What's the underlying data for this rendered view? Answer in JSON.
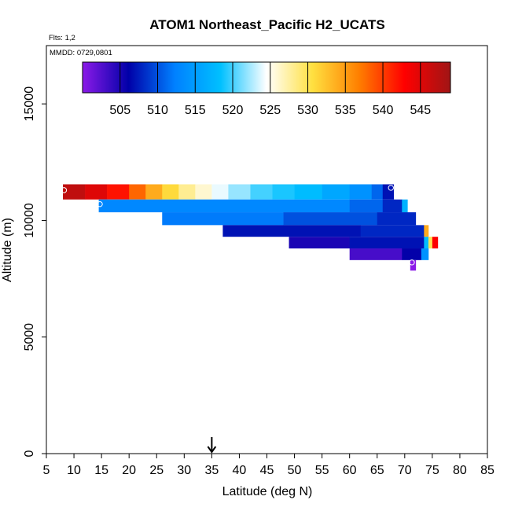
{
  "chart_data": {
    "type": "heatmap",
    "title": "ATOM1 Northeast_Pacific H2_UCATS",
    "flights_label": "Flts: 1,2",
    "date_label": "MMDD: 0729,0801",
    "xlabel": "Latitude (deg N)",
    "ylabel": "Altitude (m)",
    "xlim": [
      5,
      85
    ],
    "ylim": [
      0,
      17500
    ],
    "xticks": [
      5,
      10,
      15,
      20,
      25,
      30,
      35,
      40,
      45,
      50,
      55,
      60,
      65,
      70,
      75,
      80,
      85
    ],
    "yticks": [
      0,
      5000,
      10000,
      15000
    ],
    "grid": false,
    "marker_arrow_latitude": 35,
    "colorbar": {
      "position": "top-inside",
      "range": [
        500,
        549
      ],
      "tick_values": [
        505,
        510,
        515,
        520,
        525,
        530,
        535,
        540,
        545
      ],
      "tick_labels": [
        "505",
        "510",
        "515",
        "520",
        "525",
        "530",
        "535",
        "540",
        "545"
      ],
      "colors": [
        "#8B1AE8",
        "#0000A8",
        "#0080FF",
        "#00C0FF",
        "#FFFFFF",
        "#FFE040",
        "#FF8000",
        "#FF0000",
        "#A01515"
      ]
    },
    "rows": [
      {
        "altitude_low": 10900,
        "altitude_high": 11550,
        "segments": [
          {
            "lat0": 8.0,
            "lat1": 12.0,
            "value": 547
          },
          {
            "lat0": 12.0,
            "lat1": 16.0,
            "value": 545
          },
          {
            "lat0": 16.0,
            "lat1": 20.0,
            "value": 542
          },
          {
            "lat0": 20.0,
            "lat1": 23.0,
            "value": 538
          },
          {
            "lat0": 23.0,
            "lat1": 26.0,
            "value": 534
          },
          {
            "lat0": 26.0,
            "lat1": 29.0,
            "value": 531
          },
          {
            "lat0": 29.0,
            "lat1": 32.0,
            "value": 528
          },
          {
            "lat0": 32.0,
            "lat1": 35.0,
            "value": 526
          },
          {
            "lat0": 35.0,
            "lat1": 38.0,
            "value": 524
          },
          {
            "lat0": 38.0,
            "lat1": 42.0,
            "value": 522
          },
          {
            "lat0": 42.0,
            "lat1": 46.0,
            "value": 520
          },
          {
            "lat0": 46.0,
            "lat1": 50.0,
            "value": 519
          },
          {
            "lat0": 50.0,
            "lat1": 55.0,
            "value": 518
          },
          {
            "lat0": 55.0,
            "lat1": 60.0,
            "value": 516
          },
          {
            "lat0": 60.0,
            "lat1": 64.0,
            "value": 514
          },
          {
            "lat0": 64.0,
            "lat1": 66.0,
            "value": 511
          },
          {
            "lat0": 66.0,
            "lat1": 68.0,
            "value": 507
          }
        ]
      },
      {
        "altitude_low": 10350,
        "altitude_high": 10900,
        "segments": [
          {
            "lat0": 14.5,
            "lat1": 60.0,
            "value": 513
          },
          {
            "lat0": 60.0,
            "lat1": 66.0,
            "value": 511
          },
          {
            "lat0": 66.0,
            "lat1": 69.5,
            "value": 508
          },
          {
            "lat0": 69.5,
            "lat1": 70.5,
            "value": 517
          }
        ]
      },
      {
        "altitude_low": 9800,
        "altitude_high": 10350,
        "segments": [
          {
            "lat0": 26.0,
            "lat1": 48.0,
            "value": 512
          },
          {
            "lat0": 48.0,
            "lat1": 65.0,
            "value": 510
          },
          {
            "lat0": 65.0,
            "lat1": 72.0,
            "value": 508
          }
        ]
      },
      {
        "altitude_low": 9300,
        "altitude_high": 9800,
        "segments": [
          {
            "lat0": 37.0,
            "lat1": 62.0,
            "value": 507
          },
          {
            "lat0": 62.0,
            "lat1": 73.5,
            "value": 508
          },
          {
            "lat0": 73.5,
            "lat1": 74.3,
            "value": 534
          }
        ]
      },
      {
        "altitude_low": 8800,
        "altitude_high": 9300,
        "segments": [
          {
            "lat0": 49.0,
            "lat1": 60.0,
            "value": 505
          },
          {
            "lat0": 60.0,
            "lat1": 73.5,
            "value": 507
          },
          {
            "lat0": 73.5,
            "lat1": 74.3,
            "value": 518
          },
          {
            "lat0": 74.3,
            "lat1": 75.0,
            "value": 530
          },
          {
            "lat0": 75.0,
            "lat1": 76.0,
            "value": 543
          }
        ]
      },
      {
        "altitude_low": 8300,
        "altitude_high": 8800,
        "segments": [
          {
            "lat0": 60.0,
            "lat1": 69.5,
            "value": 503
          },
          {
            "lat0": 69.5,
            "lat1": 73.0,
            "value": 506
          },
          {
            "lat0": 73.0,
            "lat1": 74.3,
            "value": 514
          }
        ]
      },
      {
        "altitude_low": 7850,
        "altitude_high": 8300,
        "segments": [
          {
            "lat0": 71.0,
            "lat1": 72.0,
            "value": 500
          }
        ]
      }
    ],
    "points": [
      {
        "lat": 8.2,
        "alt": 11300
      },
      {
        "lat": 67.5,
        "alt": 11400
      },
      {
        "lat": 14.7,
        "alt": 10700
      },
      {
        "lat": 73.0,
        "alt": 9950
      },
      {
        "lat": 75.3,
        "alt": 9450
      },
      {
        "lat": 71.3,
        "alt": 8200
      }
    ]
  }
}
